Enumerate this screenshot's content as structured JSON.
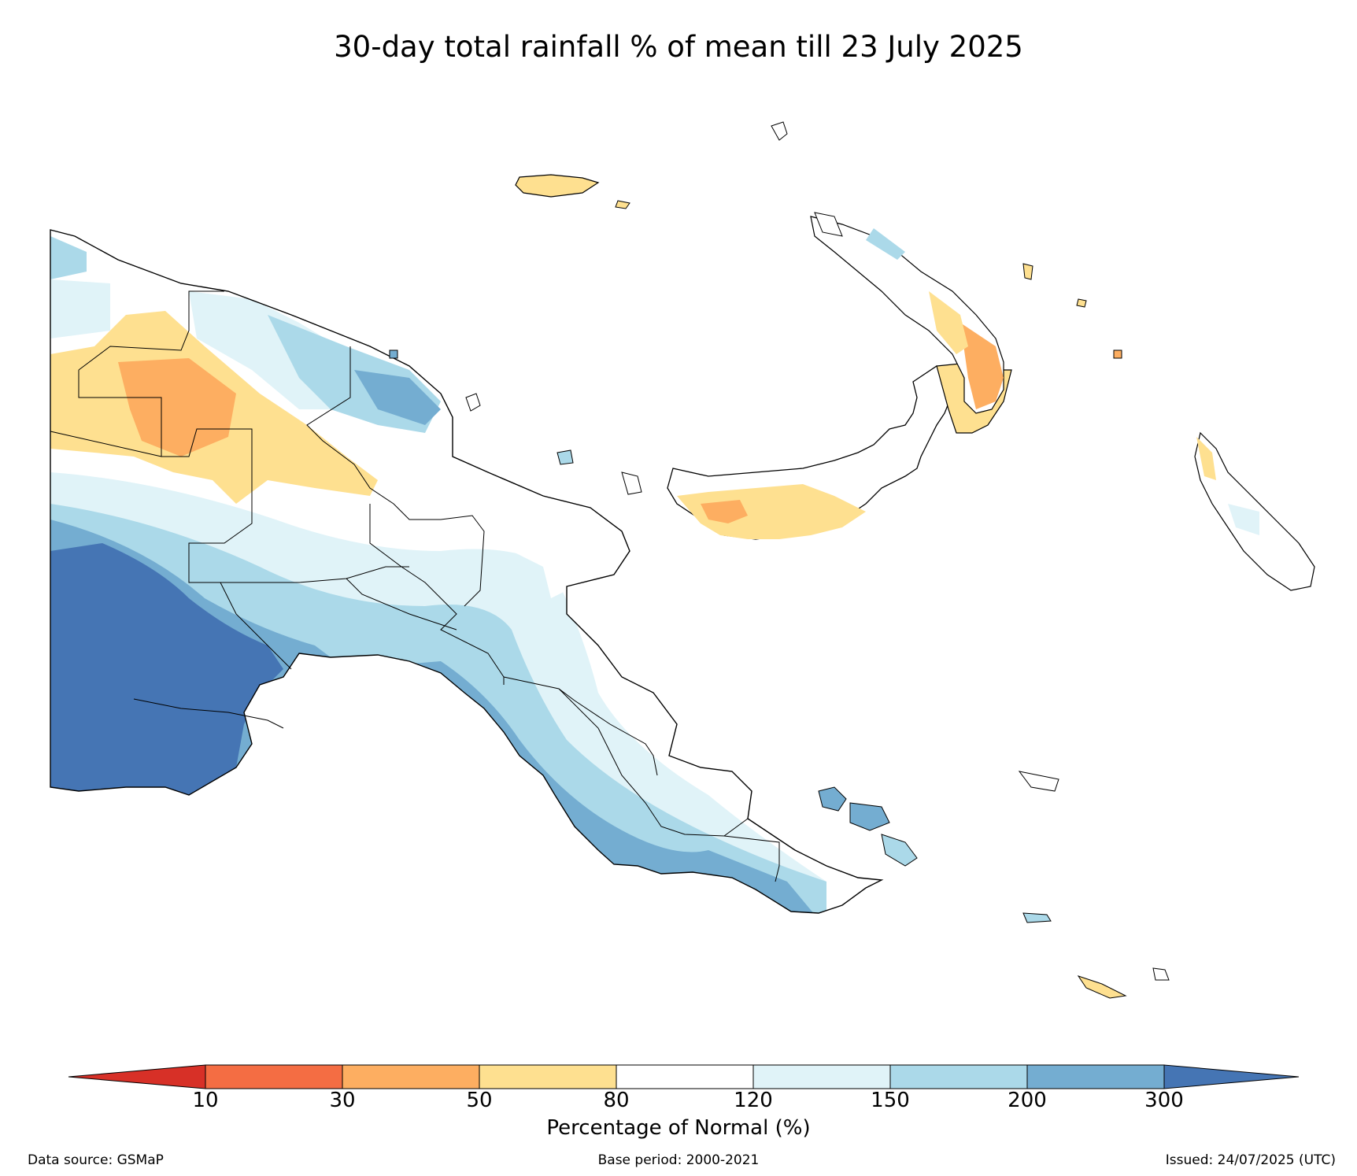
{
  "title": "30-day total rainfall % of mean till 23 July 2025",
  "colorbar": {
    "label": "Percentage of Normal (%)",
    "ticks": [
      "10",
      "30",
      "50",
      "80",
      "120",
      "150",
      "200",
      "300"
    ],
    "colors": {
      "lt10": "#d73027",
      "c10_30": "#f46d43",
      "c30_50": "#fdae61",
      "c50_80": "#fee090",
      "c80_120": "#ffffff",
      "c120_150": "#e0f3f8",
      "c150_200": "#abd9e9",
      "c200_300": "#74add1",
      "gt300": "#4575b4"
    }
  },
  "footer": {
    "source": "Data source: GSMaP",
    "base_period": "Base period: 2000-2021",
    "issued": "Issued: 24/07/2025 (UTC)"
  }
}
